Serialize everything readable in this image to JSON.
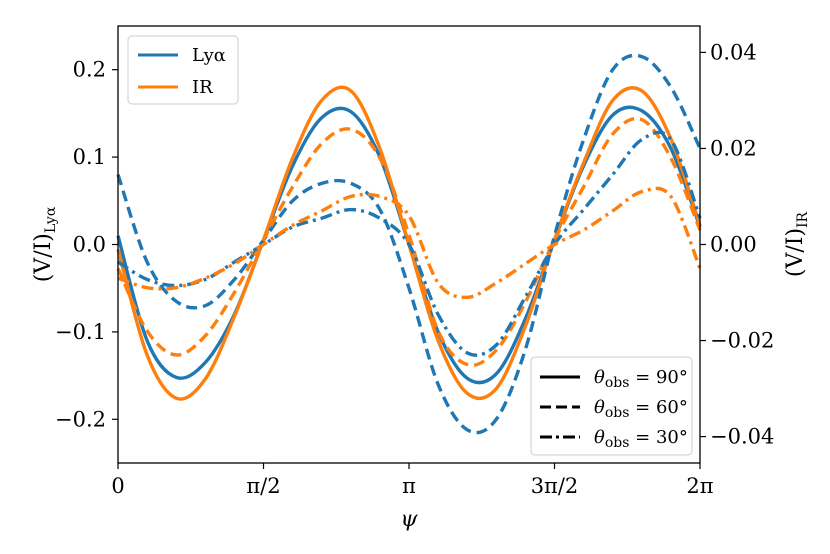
{
  "chart_data": {
    "type": "line",
    "x_ticks": [
      {
        "value": 0,
        "label": "0"
      },
      {
        "value": 1.5707963,
        "label": "π/2"
      },
      {
        "value": 3.1415927,
        "label": "π"
      },
      {
        "value": 4.712389,
        "label": "3π/2"
      },
      {
        "value": 6.2831853,
        "label": "2π"
      }
    ],
    "xlim": [
      0,
      6.2831853
    ],
    "xlabel": "ψ",
    "y_left": {
      "label_main": "(V/I)",
      "label_sub": "Lyα",
      "ylim": [
        -0.25,
        0.25
      ],
      "ticks": [
        {
          "value": -0.2,
          "label": "−0.2"
        },
        {
          "value": -0.1,
          "label": "−0.1"
        },
        {
          "value": 0.0,
          "label": "0.0"
        },
        {
          "value": 0.1,
          "label": "0.1"
        },
        {
          "value": 0.2,
          "label": "0.2"
        }
      ]
    },
    "y_right": {
      "label_main": "(V/I)",
      "label_sub": "IR",
      "ylim": [
        -0.0455,
        0.0455
      ],
      "ticks": [
        {
          "value": -0.04,
          "label": "−0.04"
        },
        {
          "value": -0.02,
          "label": "−0.02"
        },
        {
          "value": 0.0,
          "label": "0.00"
        },
        {
          "value": 0.02,
          "label": "0.02"
        },
        {
          "value": 0.04,
          "label": "0.04"
        }
      ]
    },
    "colors": {
      "lya": "#1f77b4",
      "ir": "#ff7f0e"
    },
    "series": [
      {
        "group": "Lyα",
        "axis": "left",
        "style": "solid",
        "x": [
          0,
          0.3142,
          0.6283,
          0.9425,
          1.2566,
          1.5708,
          1.885,
          2.1991,
          2.5133,
          2.8274,
          3.1416,
          3.4558,
          3.7699,
          4.0841,
          4.3982,
          4.7124,
          5.0265,
          5.3407,
          5.6549,
          5.969,
          6.2832
        ],
        "y": [
          0.01,
          -0.11,
          -0.152,
          -0.135,
          -0.08,
          0.005,
          0.09,
          0.145,
          0.152,
          0.1,
          0.0,
          -0.1,
          -0.153,
          -0.148,
          -0.085,
          0.005,
          0.09,
          0.148,
          0.153,
          0.11,
          0.02
        ]
      },
      {
        "group": "IR",
        "axis": "right",
        "style": "solid",
        "x": [
          0,
          0.3142,
          0.6283,
          0.9425,
          1.2566,
          1.5708,
          1.885,
          2.1991,
          2.5133,
          2.8274,
          3.1416,
          3.4558,
          3.7699,
          4.0841,
          4.3982,
          4.7124,
          5.0265,
          5.3407,
          5.6549,
          5.969,
          6.2832
        ],
        "y": [
          -0.001,
          -0.023,
          -0.032,
          -0.028,
          -0.015,
          0.001,
          0.018,
          0.03,
          0.032,
          0.02,
          0.0,
          -0.02,
          -0.031,
          -0.03,
          -0.017,
          0.001,
          0.017,
          0.03,
          0.032,
          0.022,
          0.004
        ]
      },
      {
        "group": "Lyα",
        "axis": "left",
        "style": "dashed",
        "x": [
          0,
          0.3142,
          0.6283,
          0.9425,
          1.2566,
          1.5708,
          1.885,
          2.1991,
          2.5133,
          2.8274,
          3.1416,
          3.4558,
          3.7699,
          4.0841,
          4.3982,
          4.7124,
          5.0265,
          5.3407,
          5.6549,
          5.969,
          6.2832
        ],
        "y": [
          0.08,
          -0.02,
          -0.065,
          -0.07,
          -0.04,
          0.005,
          0.05,
          0.07,
          0.07,
          0.04,
          -0.05,
          -0.16,
          -0.212,
          -0.2,
          -0.12,
          0.01,
          0.12,
          0.2,
          0.215,
          0.18,
          0.11
        ]
      },
      {
        "group": "IR",
        "axis": "right",
        "style": "dashed",
        "x": [
          0,
          0.3142,
          0.6283,
          0.9425,
          1.2566,
          1.5708,
          1.885,
          2.1991,
          2.5133,
          2.8274,
          3.1416,
          3.4558,
          3.7699,
          4.0841,
          4.3982,
          4.7124,
          5.0265,
          5.3407,
          5.6549,
          5.969,
          6.2832
        ],
        "y": [
          -0.005,
          -0.018,
          -0.023,
          -0.019,
          -0.01,
          0.001,
          0.012,
          0.021,
          0.024,
          0.018,
          0.002,
          -0.018,
          -0.025,
          -0.022,
          -0.012,
          0.001,
          0.012,
          0.023,
          0.026,
          0.018,
          0.003
        ]
      },
      {
        "group": "Lyα",
        "axis": "left",
        "style": "dashdot",
        "x": [
          0,
          0.3142,
          0.6283,
          0.9425,
          1.2566,
          1.5708,
          1.885,
          2.1991,
          2.5133,
          2.8274,
          3.1416,
          3.4558,
          3.7699,
          4.0841,
          4.3982,
          4.7124,
          5.0265,
          5.3407,
          5.6549,
          5.969,
          6.2832
        ],
        "y": [
          -0.02,
          -0.04,
          -0.047,
          -0.04,
          -0.02,
          0.0,
          0.02,
          0.03,
          0.04,
          0.03,
          0.0,
          -0.08,
          -0.124,
          -0.115,
          -0.06,
          0.0,
          0.04,
          0.08,
          0.12,
          0.12,
          0.03
        ]
      },
      {
        "group": "IR",
        "axis": "right",
        "style": "dashdot",
        "x": [
          0,
          0.3142,
          0.6283,
          0.9425,
          1.2566,
          1.5708,
          1.885,
          2.1991,
          2.5133,
          2.8274,
          3.1416,
          3.4558,
          3.7699,
          4.0841,
          4.3982,
          4.7124,
          5.0265,
          5.3407,
          5.6549,
          5.969,
          6.2832
        ],
        "y": [
          -0.007,
          -0.009,
          -0.009,
          -0.007,
          -0.004,
          0.0,
          0.004,
          0.007,
          0.01,
          0.01,
          0.006,
          -0.008,
          -0.011,
          -0.008,
          -0.004,
          0.0,
          0.003,
          0.007,
          0.011,
          0.01,
          -0.005
        ]
      }
    ],
    "legend_top_left": [
      {
        "label": "Lyα",
        "color": "#1f77b4"
      },
      {
        "label": "IR",
        "color": "#ff7f0e"
      }
    ],
    "legend_bottom_right": [
      {
        "label_main": "θ",
        "label_sub": "obs",
        "label_value": " = 90°",
        "style": "solid"
      },
      {
        "label_main": "θ",
        "label_sub": "obs",
        "label_value": " = 60°",
        "style": "dashed"
      },
      {
        "label_main": "θ",
        "label_sub": "obs",
        "label_value": " = 30°",
        "style": "dashdot"
      }
    ]
  }
}
